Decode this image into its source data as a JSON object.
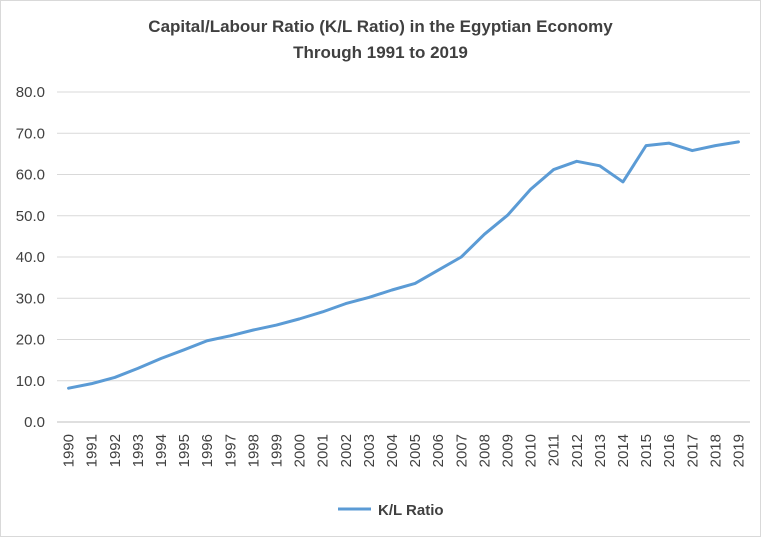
{
  "chart_data": {
    "type": "line",
    "title": "Capital/Labour Ratio (K/L Ratio) in the Egyptian Economy",
    "subtitle": "Through 1991 to 2019",
    "xlabel": "",
    "ylabel": "",
    "ylim": [
      0,
      80
    ],
    "yticks": [
      "0.0",
      "10.0",
      "20.0",
      "30.0",
      "40.0",
      "50.0",
      "60.0",
      "70.0",
      "80.0"
    ],
    "x": [
      "1990",
      "1991",
      "1992",
      "1993",
      "1994",
      "1995",
      "1996",
      "1997",
      "1998",
      "1999",
      "2000",
      "2001",
      "2002",
      "2003",
      "2004",
      "2005",
      "2006",
      "2007",
      "2008",
      "2009",
      "2010",
      "2011",
      "2012",
      "2013",
      "2014",
      "2015",
      "2016",
      "2017",
      "2018",
      "2019"
    ],
    "grid": true,
    "legend_position": "bottom",
    "series": [
      {
        "name": "K/L Ratio",
        "color": "#5b9bd5",
        "values": [
          8.2,
          9.3,
          10.8,
          13.0,
          15.4,
          17.5,
          19.7,
          20.9,
          22.3,
          23.5,
          25.0,
          26.7,
          28.7,
          30.2,
          32.0,
          33.6,
          36.8,
          40.0,
          45.5,
          50.1,
          56.4,
          61.2,
          63.2,
          62.1,
          58.2,
          67.0,
          67.6,
          65.8,
          67.0,
          67.9
        ]
      }
    ]
  }
}
